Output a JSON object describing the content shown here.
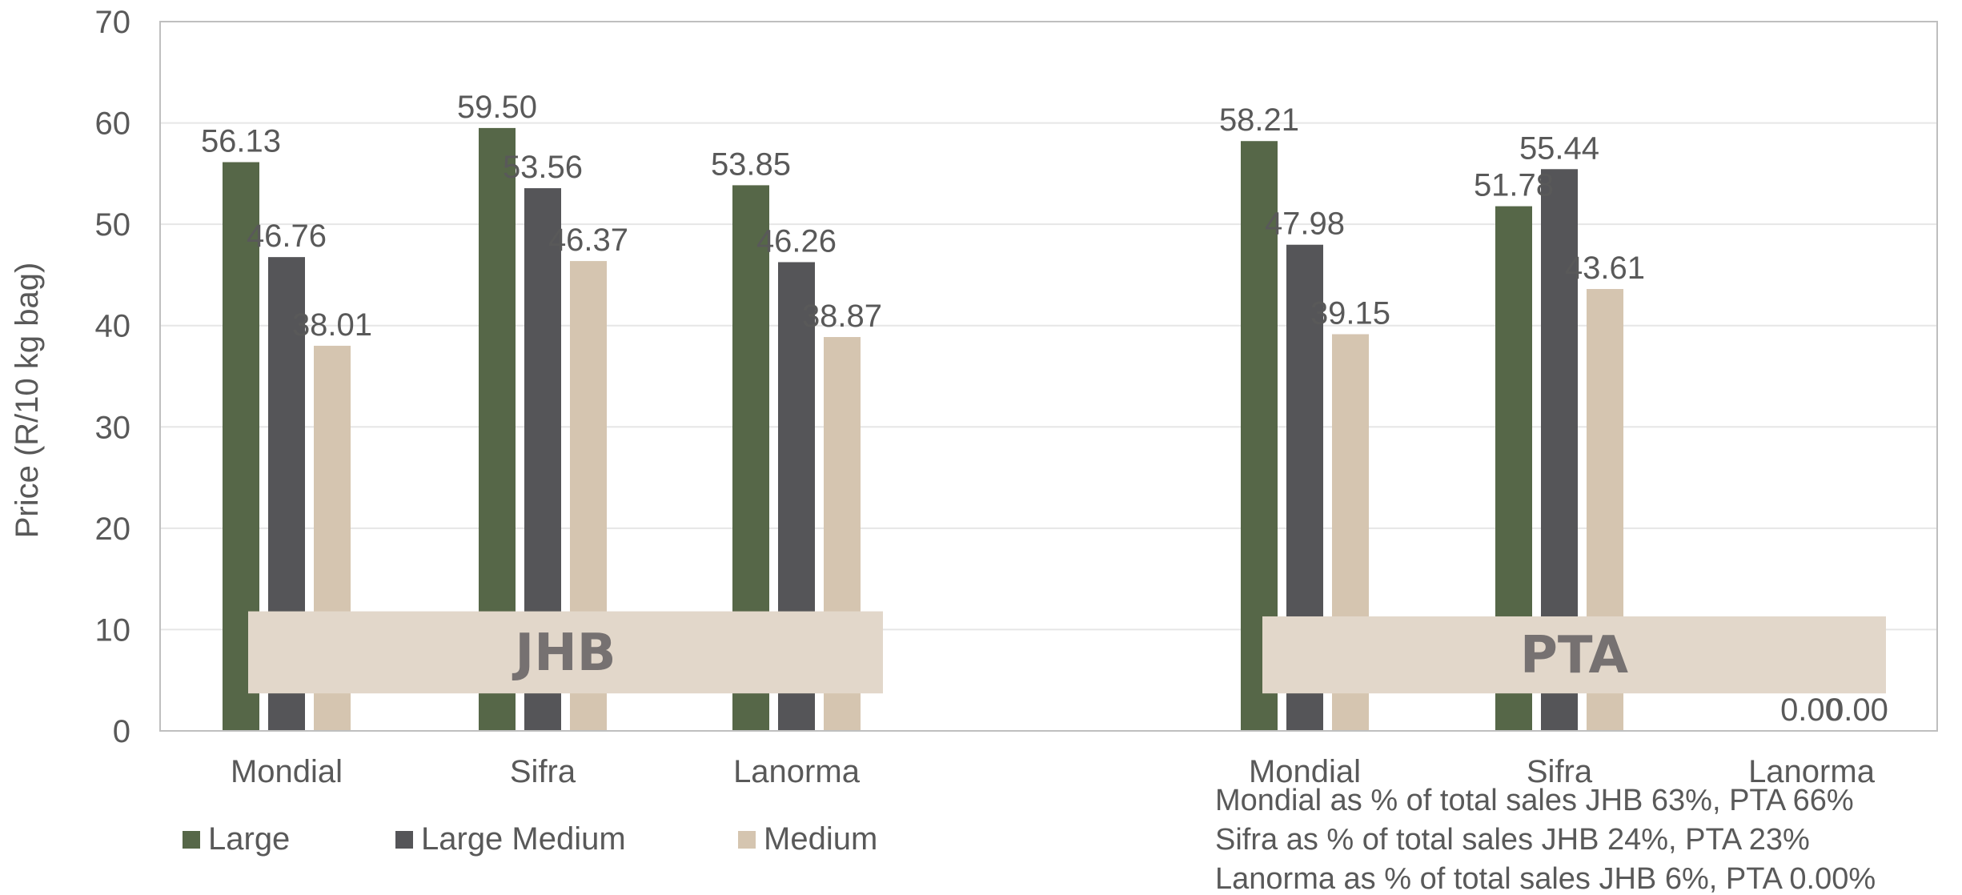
{
  "chart_data": {
    "type": "bar",
    "ylabel": "Price (R/10 kg bag)",
    "ylim": [
      0,
      70
    ],
    "yticks": [
      "0",
      "10",
      "20",
      "30",
      "40",
      "50",
      "60",
      "70"
    ],
    "grid": true,
    "legend_position": "bottom-left",
    "groups": [
      {
        "label": "JHB",
        "categories": [
          "Mondial",
          "Sifra",
          "Lanorma"
        ],
        "series": [
          {
            "name": "Large",
            "values": [
              56.13,
              59.5,
              53.85
            ],
            "labels": [
              "56.13",
              "59.50",
              "53.85"
            ]
          },
          {
            "name": "Large Medium",
            "values": [
              46.76,
              53.56,
              46.26
            ],
            "labels": [
              "46.76",
              "53.56",
              "46.26"
            ]
          },
          {
            "name": "Medium",
            "values": [
              38.01,
              46.37,
              38.87
            ],
            "labels": [
              "38.01",
              "46.37",
              "38.87"
            ]
          }
        ]
      },
      {
        "label": "PTA",
        "categories": [
          "Mondial",
          "Sifra",
          "Lanorma"
        ],
        "series": [
          {
            "name": "Large",
            "values": [
              58.21,
              51.78,
              0
            ],
            "labels": [
              "58.21",
              "51.78",
              ""
            ]
          },
          {
            "name": "Large Medium",
            "values": [
              47.98,
              55.44,
              0
            ],
            "labels": [
              "47.98",
              "55.44",
              "0.00"
            ]
          },
          {
            "name": "Medium",
            "values": [
              39.15,
              43.61,
              0
            ],
            "labels": [
              "39.15",
              "43.61",
              "0.00"
            ]
          }
        ]
      }
    ],
    "series_colors": {
      "Large": "#566748",
      "Large Medium": "#555558",
      "Medium": "#d5c5b0"
    },
    "notes": [
      "Mondial as % of total sales JHB 63%, PTA 66%",
      "Sifra as % of total sales JHB 24%, PTA 23%",
      "Lanorma as % of total sales JHB 6%, PTA 0.00%"
    ]
  },
  "colors": {
    "band": "#e2d7ca",
    "grid": "#e6e6e6",
    "axis": "#bfbfbf",
    "text": "#595959",
    "group_text": "#767171"
  }
}
